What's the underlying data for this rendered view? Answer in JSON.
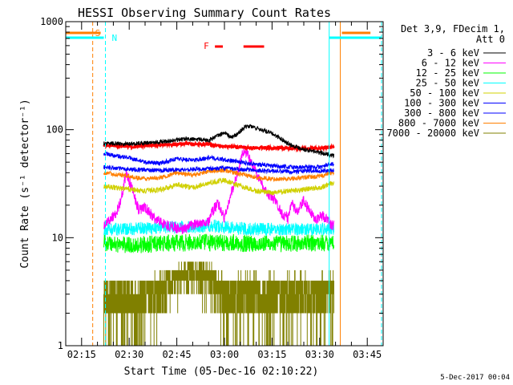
{
  "chart_data": {
    "type": "line",
    "title": "HESSI Observing Summary Count Rates",
    "xlabel": "Start Time (05-Dec-16 02:10:22)",
    "ylabel": "Count Rate (s⁻¹ detector⁻¹)",
    "x_ticks": [
      "02:15",
      "02:30",
      "02:45",
      "03:00",
      "03:15",
      "03:30",
      "03:45"
    ],
    "x_tick_minutes": [
      15,
      30,
      45,
      60,
      75,
      90,
      105
    ],
    "xlim_minutes": [
      10,
      110
    ],
    "data_start_minute": 22,
    "data_end_minute": 94.5,
    "y_scale": "log",
    "ylim": [
      1,
      1000
    ],
    "y_ticks": [
      "1",
      "10",
      "100",
      "1000"
    ],
    "y_tick_values": [
      1,
      10,
      100,
      1000
    ],
    "legend_header": [
      "Det 3,9, FDecim 1,",
      "Att 0"
    ],
    "legend_position": "right",
    "footer_date": "5-Dec-2017 00:04",
    "annotations": [
      {
        "label": "S",
        "color": "#ff7f00"
      },
      {
        "label": "N",
        "color": "#00ffff"
      },
      {
        "label": "F",
        "color": "#ff0000"
      }
    ],
    "markers": {
      "saa_minutes": [
        18.5,
        96.5,
        10,
        21,
        97,
        106
      ],
      "night_minutes": [
        22.5,
        93,
        10,
        22,
        93,
        109.5
      ],
      "flare_minutes": [
        [
          57,
          59.5
        ],
        [
          66,
          72.5
        ]
      ]
    },
    "series": [
      {
        "name": "3 - 6 keV",
        "color": "#000000",
        "x": [
          22,
          30,
          40,
          48,
          55,
          58,
          60,
          62,
          64,
          66,
          68,
          70,
          72,
          75,
          78,
          81,
          85,
          89,
          94
        ],
        "y": [
          75,
          74,
          77,
          82,
          80,
          88,
          94,
          85,
          90,
          104,
          108,
          104,
          99,
          92,
          82,
          72,
          66,
          62,
          58
        ]
      },
      {
        "name": "6 - 12 keV",
        "color": "#ff00ff",
        "x": [
          22,
          26,
          28,
          29,
          31,
          33,
          35,
          38,
          42,
          47,
          50,
          53,
          55,
          56,
          58,
          60,
          62,
          64,
          66,
          67,
          68,
          70,
          72,
          74,
          76,
          78,
          80,
          81,
          83,
          85,
          87,
          89,
          91,
          94
        ],
        "y": [
          13,
          17,
          26,
          40,
          28,
          18,
          19,
          15,
          13,
          12,
          13,
          14,
          14,
          17,
          21,
          15,
          25,
          38,
          65,
          62,
          52,
          40,
          30,
          25,
          22,
          17,
          15,
          21,
          17,
          22,
          17,
          15,
          16,
          13
        ]
      },
      {
        "name": "12 - 25 keV",
        "color": "#00ff00",
        "x": [
          22,
          30,
          40,
          50,
          60,
          70,
          80,
          94
        ],
        "y": [
          9,
          8.5,
          8.8,
          9,
          9,
          8.8,
          8.8,
          9
        ]
      },
      {
        "name": "25 - 50 keV",
        "color": "#00ffff",
        "x": [
          22,
          30,
          40,
          50,
          55,
          60,
          70,
          80,
          94
        ],
        "y": [
          12,
          12,
          12.5,
          12.5,
          13,
          12.5,
          12,
          12,
          12
        ]
      },
      {
        "name": "50 - 100 keV",
        "color": "#d0d000",
        "x": [
          22,
          30,
          35,
          40,
          45,
          50,
          55,
          60,
          65,
          70,
          75,
          80,
          85,
          90,
          94
        ],
        "y": [
          30,
          28,
          27,
          28,
          31,
          29,
          32,
          34,
          30,
          27,
          26,
          27,
          28,
          29,
          32
        ]
      },
      {
        "name": "100 - 300 keV",
        "color": "#0000ff",
        "x": [
          22,
          30,
          35,
          40,
          45,
          50,
          55,
          60,
          65,
          70,
          75,
          80,
          85,
          90,
          94
        ],
        "y": [
          60,
          55,
          50,
          49,
          54,
          52,
          55,
          53,
          50,
          48,
          46,
          45,
          45,
          45,
          48
        ]
      },
      {
        "name": "300 - 800 keV",
        "color": "#0000ff",
        "x": [
          22,
          30,
          40,
          50,
          60,
          70,
          80,
          94
        ],
        "y": [
          45,
          43,
          42,
          43,
          44,
          42,
          41,
          42
        ]
      },
      {
        "name": "800 - 7000 keV",
        "color": "#ff7f00",
        "x": [
          22,
          30,
          35,
          40,
          45,
          50,
          55,
          60,
          65,
          70,
          75,
          80,
          85,
          90,
          94
        ],
        "y": [
          40,
          37,
          35,
          36,
          40,
          38,
          41,
          42,
          39,
          36,
          35,
          35,
          36,
          37,
          40
        ]
      },
      {
        "name": "7000 - 20000 keV",
        "color": "#808000",
        "x": [
          22,
          30,
          40,
          45,
          50,
          55,
          60,
          62,
          65,
          70,
          75,
          80,
          85,
          90,
          94
        ],
        "y": [
          2.5,
          2.5,
          3,
          4,
          4.5,
          4,
          2.8,
          2.5,
          3,
          2.8,
          2.8,
          3,
          3,
          2.8,
          3
        ]
      },
      {
        "name": "red (unlabeled)",
        "color": "#ff0000",
        "x": [
          22,
          30,
          40,
          48,
          55,
          60,
          70,
          80,
          90,
          94
        ],
        "y": [
          72,
          70,
          72,
          74,
          73,
          70,
          68,
          67,
          67,
          69
        ]
      }
    ]
  }
}
